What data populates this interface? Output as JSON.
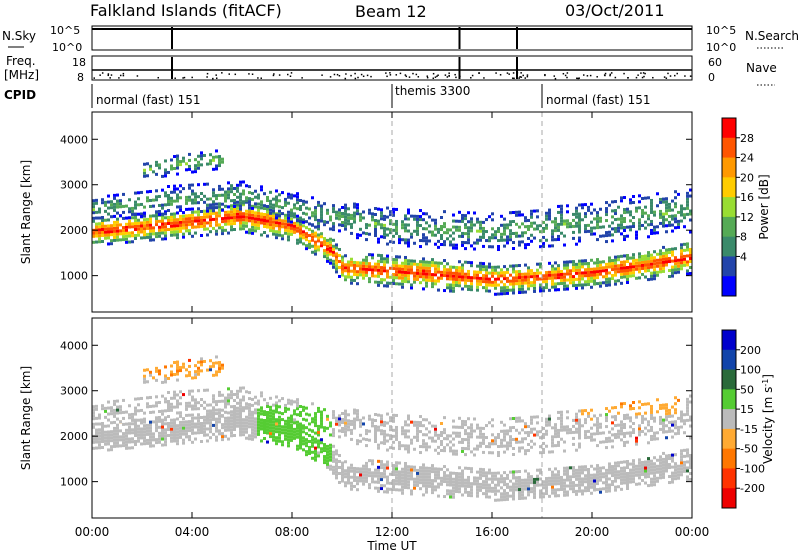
{
  "header": {
    "station": "Falkland Islands (fitACF)",
    "beam": "Beam 12",
    "date": "03/Oct/2011"
  },
  "strips": {
    "nsky_label": "N.Sky",
    "nsky_ticks": [
      "10^5",
      "10^0"
    ],
    "nsearch_label": "N.Search",
    "nsearch_ticks": [
      "10^5",
      "10^0"
    ],
    "freq_label": "Freq.",
    "freq_unit": "[MHz]",
    "freq_ticks": [
      "18",
      "8"
    ],
    "nave_label": "Nave",
    "nave_ticks": [
      "60",
      "0"
    ],
    "cpid_label": "CPID"
  },
  "cpid_segments": [
    {
      "start_hour": 0.0,
      "end_hour": 12.0,
      "label": "normal (fast) 151"
    },
    {
      "start_hour": 12.0,
      "end_hour": 18.0,
      "label": "themis 3300"
    },
    {
      "start_hour": 18.0,
      "end_hour": 24.0,
      "label": "normal (fast) 151"
    }
  ],
  "power_colorbar": {
    "label": "Power [dB]",
    "ticks": [
      "28",
      "24",
      "20",
      "16",
      "12",
      "8",
      "4"
    ],
    "colors": [
      "#ff0000",
      "#ff5500",
      "#ff9900",
      "#ffcc00",
      "#99dd33",
      "#55aa55",
      "#3a8a6a",
      "#2244aa",
      "#0000ff"
    ]
  },
  "velocity_colorbar": {
    "label": "Velocity [m s",
    "label_sup": "-1",
    "label_end": "]",
    "ticks": [
      "200",
      "100",
      "50",
      "15",
      "-15",
      "-50",
      "-100",
      "-200"
    ],
    "colors": [
      "#0000cc",
      "#1144aa",
      "#2a6a3a",
      "#55cc33",
      "#bbbbbb",
      "#ffaa33",
      "#ff7700",
      "#ff3300",
      "#ee0000"
    ]
  },
  "axes": {
    "ylabel": "Slant Range [km]",
    "yticks": [
      "4000",
      "3000",
      "2000",
      "1000"
    ],
    "xticks": [
      "00:00",
      "04:00",
      "08:00",
      "12:00",
      "16:00",
      "20:00",
      "00:00"
    ],
    "xlabel": "Time UT"
  },
  "chart_data": [
    {
      "type": "heatmap",
      "title": "",
      "quantity": "Power [dB]",
      "xlabel": "Time UT",
      "ylabel": "Slant Range [km]",
      "xlim_hours": [
        0,
        24
      ],
      "ylim_km": [
        200,
        4600
      ],
      "color_range_db": [
        0,
        32
      ],
      "echo_bands": [
        {
          "name": "main",
          "hours": [
            0,
            3,
            6,
            8,
            9.5,
            10,
            13,
            16,
            18,
            20,
            22,
            24
          ],
          "center_km": [
            2000,
            2150,
            2350,
            2100,
            1600,
            1200,
            1100,
            950,
            1000,
            1100,
            1250,
            1450
          ],
          "width_km": [
            300,
            300,
            350,
            300,
            300,
            320,
            350,
            330,
            300,
            320,
            320,
            360
          ],
          "peak_db": 30
        },
        {
          "name": "upper",
          "hours": [
            0,
            3,
            6,
            9,
            12,
            16,
            20,
            24
          ],
          "center_km": [
            2500,
            2700,
            2800,
            2400,
            2100,
            2000,
            2200,
            2500
          ],
          "width_km": [
            280,
            300,
            300,
            350,
            400,
            400,
            450,
            500
          ],
          "peak_db": 12
        },
        {
          "name": "patch",
          "hours": [
            2,
            3.5,
            5.2
          ],
          "center_km": [
            3350,
            3500,
            3600
          ],
          "width_km": [
            200,
            220,
            200
          ],
          "peak_db": 14
        }
      ]
    },
    {
      "type": "heatmap",
      "title": "",
      "quantity": "Velocity [m s-1]",
      "xlabel": "Time UT",
      "ylabel": "Slant Range [km]",
      "xlim_hours": [
        0,
        24
      ],
      "ylim_km": [
        200,
        4600
      ],
      "color_range_ms": [
        -200,
        200
      ],
      "note_patches": [
        {
          "hours": [
            2,
            5.2
          ],
          "range_km": [
            3300,
            3700
          ],
          "velocity_ms": -60
        },
        {
          "hours": [
            6.5,
            9.5
          ],
          "range_km": [
            1400,
            2700
          ],
          "velocity_ms": 40
        },
        {
          "hours": [
            19.5,
            23.5
          ],
          "range_km": [
            2500,
            3400
          ],
          "velocity_ms": -60
        }
      ]
    }
  ]
}
